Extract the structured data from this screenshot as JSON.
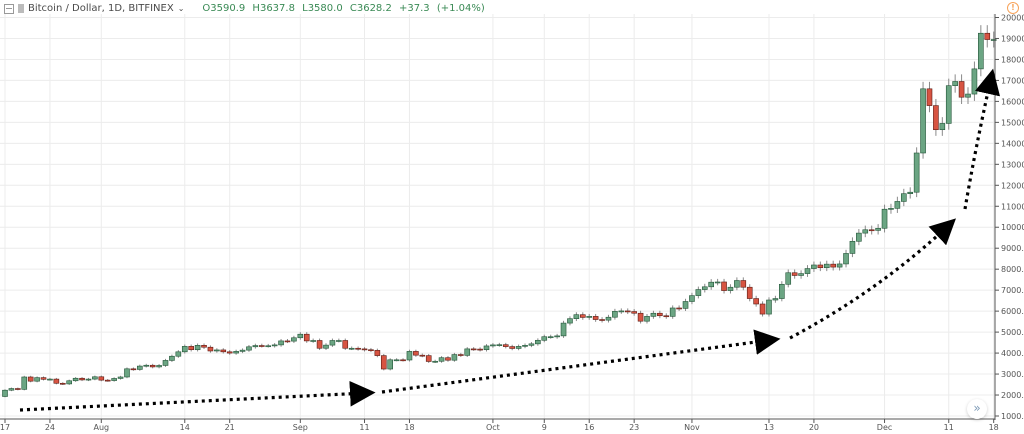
{
  "header": {
    "symbol": "Bitcoin / Dollar, 1D, BITFINEX",
    "ohlc": "O3590.9  H3637.8  L3580.0  C3628.2  +37.3 (+1.04%)"
  },
  "colors": {
    "up": "#6ba583",
    "up_border": "#225437",
    "down": "#d75442",
    "down_border": "#5b1a13",
    "wick": "#8a8a8a",
    "grid": "#ececec",
    "warning": "#f7a35a",
    "annotation": "#000000"
  },
  "icons": {
    "warning": "warning-icon",
    "scroll": "chevrons-right-icon"
  },
  "chart_data": {
    "type": "candlestick",
    "title": "Bitcoin / Dollar, 1D, BITFINEX",
    "first_open": 1930,
    "close": [
      2230,
      2310,
      2270,
      2860,
      2660,
      2830,
      2750,
      2760,
      2560,
      2530,
      2680,
      2800,
      2720,
      2760,
      2870,
      2710,
      2690,
      2790,
      2860,
      3250,
      3220,
      3380,
      3420,
      3340,
      3410,
      3650,
      3850,
      4060,
      4320,
      4160,
      4370,
      4280,
      4100,
      4150,
      4060,
      4000,
      4080,
      4140,
      4300,
      4360,
      4350,
      4350,
      4390,
      4580,
      4570,
      4730,
      4900,
      4580,
      4600,
      4230,
      4380,
      4600,
      4600,
      4230,
      4230,
      4200,
      4160,
      4130,
      3880,
      3240,
      3680,
      3680,
      3670,
      4080,
      3900,
      3880,
      3600,
      3610,
      3780,
      3660,
      3930,
      3890,
      4200,
      4190,
      4160,
      4340,
      4390,
      4400,
      4310,
      4220,
      4320,
      4370,
      4440,
      4610,
      4780,
      4780,
      4820,
      5430,
      5640,
      5830,
      5700,
      5750,
      5600,
      5570,
      5710,
      5990,
      6010,
      5980,
      5900,
      5520,
      5750,
      5900,
      5780,
      5750,
      6150,
      6130,
      6460,
      6740,
      7030,
      7160,
      7380,
      7390,
      6980,
      7140,
      7460,
      7140,
      6600,
      6340,
      5860,
      6530,
      6600,
      7280,
      7830,
      7700,
      7790,
      8030,
      8200,
      8070,
      8240,
      8100,
      8250,
      8750,
      9330,
      9720,
      9880,
      9850,
      9950,
      10860,
      10900,
      11230,
      11600,
      11670,
      13540,
      16600,
      15800,
      14650,
      14950,
      16750,
      16950,
      16200,
      16350,
      17550,
      19250,
      18950,
      18950
    ],
    "y_ticks": [
      "1000.0",
      "2000.0",
      "3000.0",
      "4000.0",
      "5000.0",
      "6000.0",
      "7000.0",
      "8000.0",
      "9000.0",
      "10000.0",
      "11000.0",
      "12000.0",
      "13000.0",
      "14000.0",
      "15000.0",
      "16000.0",
      "17000.0",
      "18000.0",
      "19000.0",
      "20000.0"
    ],
    "ylim": [
      1000,
      20000
    ],
    "x_ticks": [
      {
        "label": "17",
        "day": 0
      },
      {
        "label": "24",
        "day": 7
      },
      {
        "label": "Aug",
        "day": 15
      },
      {
        "label": "14",
        "day": 28
      },
      {
        "label": "21",
        "day": 35
      },
      {
        "label": "Sep",
        "day": 46
      },
      {
        "label": "11",
        "day": 56
      },
      {
        "label": "18",
        "day": 63
      },
      {
        "label": "Oct",
        "day": 76
      },
      {
        "label": "9",
        "day": 84
      },
      {
        "label": "16",
        "day": 91
      },
      {
        "label": "23",
        "day": 98
      },
      {
        "label": "Nov",
        "day": 107
      },
      {
        "label": "13",
        "day": 119
      },
      {
        "label": "20",
        "day": 126
      },
      {
        "label": "Dec",
        "day": 137
      },
      {
        "label": "11",
        "day": 147
      },
      {
        "label": "18",
        "day": 154
      }
    ],
    "grid": true
  }
}
